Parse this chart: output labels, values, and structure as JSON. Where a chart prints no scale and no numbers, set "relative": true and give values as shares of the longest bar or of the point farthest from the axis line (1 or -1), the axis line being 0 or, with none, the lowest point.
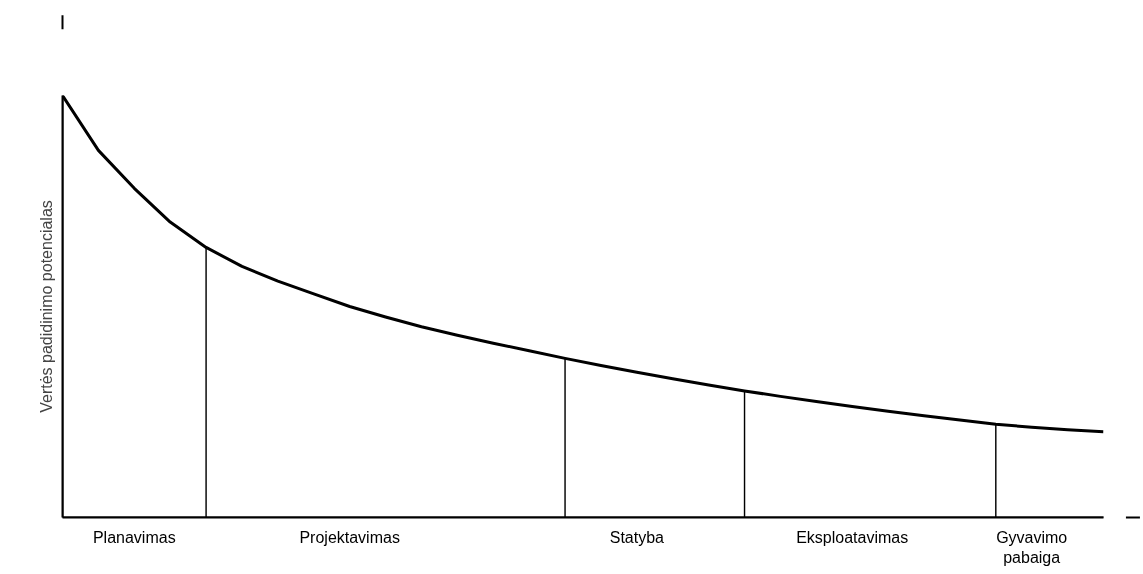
{
  "chart_data": {
    "type": "line",
    "relative": true,
    "ylabel": "Vertės padidinimo potencialas",
    "grid": false,
    "categories": [
      null,
      null,
      "Planavimas",
      null,
      null,
      null,
      null,
      null,
      "Projektavimas",
      null,
      null,
      null,
      null,
      null,
      null,
      null,
      "Statyba",
      null,
      null,
      null,
      null,
      null,
      "Eksploatavimas",
      null,
      null,
      null,
      null,
      "Gyvavimo pabaiga",
      null,
      null
    ],
    "series": [
      {
        "color": "#000000",
        "marker": "none",
        "line_style": "solid",
        "values": [
          1.0,
          0.87,
          0.78,
          0.7,
          0.64,
          0.595,
          0.56,
          0.53,
          0.5,
          0.475,
          0.452,
          0.432,
          0.413,
          0.395,
          0.377,
          0.36,
          0.344,
          0.329,
          0.314,
          0.3,
          0.287,
          0.275,
          0.263,
          0.252,
          0.241,
          0.231,
          0.221,
          0.214,
          0.208,
          0.203
        ]
      },
      {
        "type": "bar",
        "color": "#000000",
        "values": [
          null,
          null,
          null,
          null,
          0.64,
          null,
          null,
          null,
          null,
          null,
          null,
          null,
          null,
          null,
          0.377,
          null,
          null,
          null,
          null,
          0.3,
          null,
          null,
          null,
          null,
          null,
          null,
          0.221,
          null,
          null,
          null
        ]
      }
    ]
  }
}
